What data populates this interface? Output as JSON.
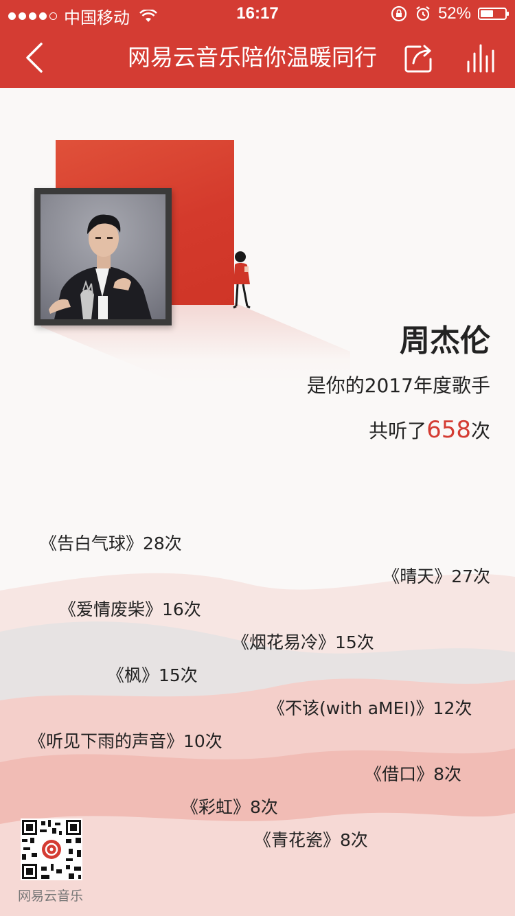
{
  "status_bar": {
    "carrier": "中国移动",
    "time": "16:17",
    "battery": "52%",
    "battery_level": 0.52
  },
  "nav": {
    "title": "网易云音乐陪你温暖同行",
    "back_icon": "back-icon",
    "share_icon": "share-icon",
    "stats_icon": "stats-icon"
  },
  "artist": {
    "name": "周杰伦",
    "subtitle": "是你的2017年度歌手",
    "plays_prefix": "共听了",
    "plays_count": "658",
    "plays_suffix": "次"
  },
  "songs": [
    {
      "label": "《告白气球》28次"
    },
    {
      "label": "《晴天》27次"
    },
    {
      "label": "《爱情废柴》16次"
    },
    {
      "label": "《烟花易冷》15次"
    },
    {
      "label": "《枫》15次"
    },
    {
      "label": "《不该(with aMEI)》12次"
    },
    {
      "label": "《听见下雨的声音》10次"
    },
    {
      "label": "《借口》8次"
    },
    {
      "label": "《彩虹》8次"
    },
    {
      "label": "《青花瓷》8次"
    }
  ],
  "footer": {
    "brand": "网易云音乐"
  },
  "colors": {
    "accent": "#d43c33",
    "text": "#222222"
  }
}
